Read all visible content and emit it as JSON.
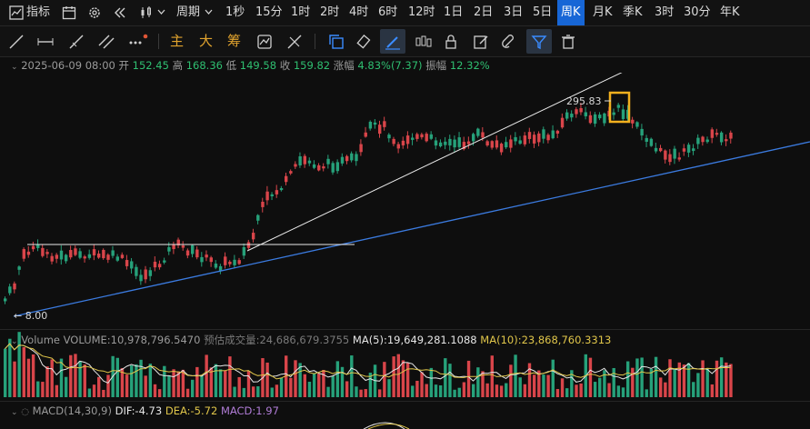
{
  "topbar": {
    "indicator_label": "指标",
    "period_label": "周期",
    "intervals": [
      "1秒",
      "15分",
      "1时",
      "2时",
      "4时",
      "6时",
      "12时",
      "1日",
      "2日",
      "3日",
      "5日",
      "周K",
      "月K",
      "季K",
      "3时",
      "30分",
      "年K"
    ],
    "active_interval": "周K"
  },
  "toolbar": {
    "text_tools": [
      "主",
      "大",
      "筹"
    ]
  },
  "info": {
    "date": "2025-06-09 08:00",
    "open_label": "开",
    "open": "152.45",
    "high_label": "高",
    "high": "168.36",
    "low_label": "低",
    "low": "149.58",
    "close_label": "收",
    "close": "159.82",
    "change_label": "涨幅",
    "change": "4.83%(7.37)",
    "amp_label": "振幅",
    "amp": "12.32%"
  },
  "annotations": {
    "high_marker": "295.83",
    "low_marker": "← 8.00"
  },
  "volume": {
    "title": "Volume",
    "volume_text": "VOLUME:10,978,796.5470",
    "est_text": "预估成交量:24,686,679.3755",
    "ma5_text": "MA(5):19,649,281.1088",
    "ma10_text": "MA(10):23,868,760.3313"
  },
  "macd": {
    "title": "MACD(14,30,9)",
    "dif_text": "DIF:-4.73",
    "dea_text": "DEA:-5.72",
    "macd_text": "MACD:1.97"
  },
  "colors": {
    "up": "#26a17a",
    "down": "#d9454a",
    "accent": "#1766d6",
    "trendline": "#3b7be0",
    "highlight": "#f2b01e",
    "ma5": "#e6e6e6",
    "ma10": "#e0c64a"
  }
}
